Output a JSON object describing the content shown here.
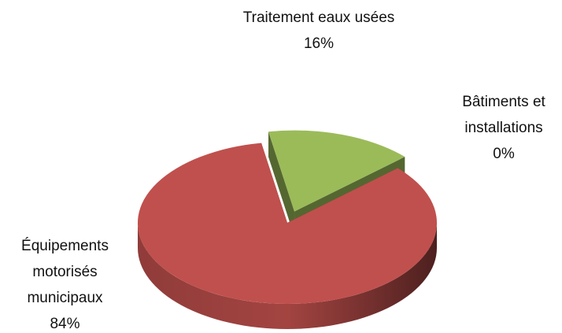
{
  "chart_data": {
    "type": "pie3d",
    "categories": [
      "Traitement eaux usées",
      "Bâtiments et installations",
      "Équipements motorisés municipaux"
    ],
    "values": [
      16,
      0,
      84
    ],
    "value_labels": [
      "16%",
      "0%",
      "84%"
    ],
    "colors": [
      "#9bbb59",
      "#4f81bd",
      "#c0504d"
    ],
    "exploded": [
      true,
      true,
      false
    ]
  }
}
